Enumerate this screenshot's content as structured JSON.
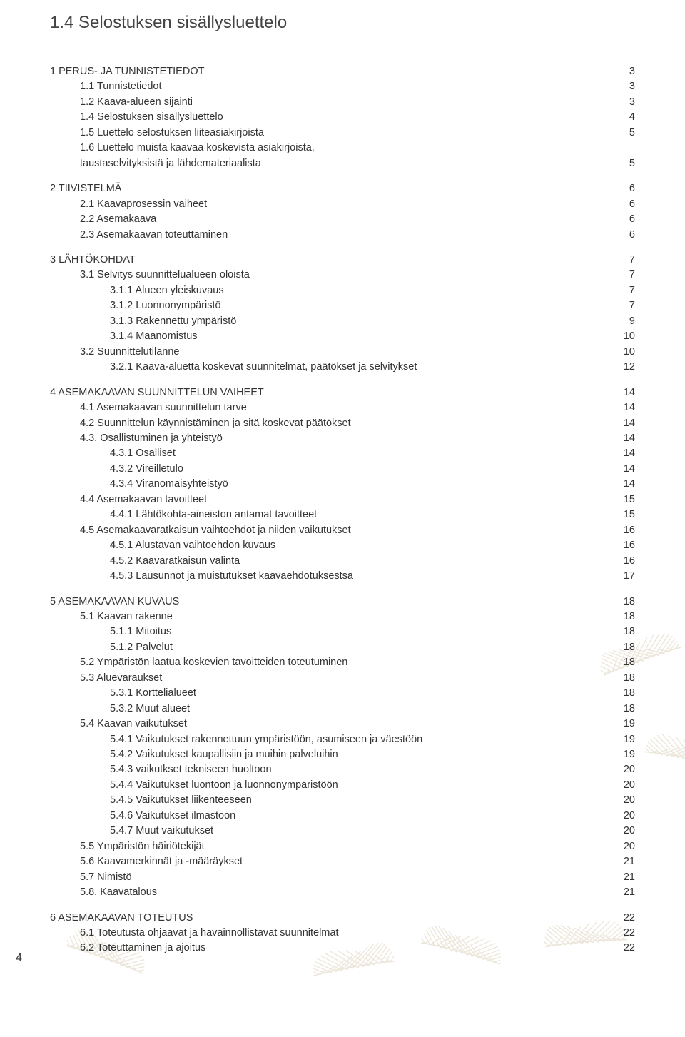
{
  "title": "1.4 Selostuksen sisällysluettelo",
  "page_number": "4",
  "leaf_stroke": "#c9b896",
  "toc": [
    {
      "gap": true
    },
    {
      "label": "1 PERUS- JA TUNNISTETIEDOT",
      "num": "3",
      "indent": 0
    },
    {
      "label": "1.1 Tunnistetiedot",
      "num": "3",
      "indent": 1
    },
    {
      "label": "1.2 Kaava-alueen sijainti",
      "num": "3",
      "indent": 1
    },
    {
      "label": "1.4 Selostuksen sisällysluettelo",
      "num": "4",
      "indent": 1
    },
    {
      "label": "1.5 Luettelo selostuksen liiteasiakirjoista",
      "num": "5",
      "indent": 1
    },
    {
      "label": "1.6 Luettelo muista kaavaa koskevista asiakirjoista,",
      "num": "",
      "indent": 1
    },
    {
      "label": "taustaselvityksistä ja lähdemateriaalista",
      "num": "5",
      "indent": 1
    },
    {
      "gap": true
    },
    {
      "label": "2 TIIVISTELMÄ",
      "num": "6",
      "indent": 0
    },
    {
      "label": "2.1 Kaavaprosessin vaiheet",
      "num": "6",
      "indent": 1
    },
    {
      "label": "2.2 Asemakaava",
      "num": "6",
      "indent": 1
    },
    {
      "label": "2.3 Asemakaavan toteuttaminen",
      "num": "6",
      "indent": 1
    },
    {
      "gap": true
    },
    {
      "label": "3 LÄHTÖKOHDAT",
      "num": "7",
      "indent": 0
    },
    {
      "label": "3.1 Selvitys suunnittelualueen oloista",
      "num": "7",
      "indent": 1
    },
    {
      "label": "3.1.1 Alueen yleiskuvaus",
      "num": "7",
      "indent": 2
    },
    {
      "label": "3.1.2 Luonnonympäristö",
      "num": "7",
      "indent": 2
    },
    {
      "label": "3.1.3 Rakennettu ympäristö",
      "num": "9",
      "indent": 2
    },
    {
      "label": "3.1.4 Maanomistus",
      "num": "10",
      "indent": 2
    },
    {
      "label": "3.2 Suunnittelutilanne",
      "num": "10",
      "indent": 1
    },
    {
      "label": "3.2.1 Kaava-aluetta koskevat suunnitelmat, päätökset ja selvitykset",
      "num": "12",
      "indent": 2
    },
    {
      "gap": true
    },
    {
      "label": "4 ASEMAKAAVAN SUUNNITTELUN VAIHEET",
      "num": "14",
      "indent": 0
    },
    {
      "label": "4.1 Asemakaavan suunnittelun tarve",
      "num": "14",
      "indent": 1
    },
    {
      "label": "4.2 Suunnittelun käynnistäminen ja sitä koskevat päätökset",
      "num": "14",
      "indent": 1
    },
    {
      "label": "4.3. Osallistuminen ja yhteistyö",
      "num": "14",
      "indent": 1
    },
    {
      "label": "4.3.1 Osalliset",
      "num": "14",
      "indent": 2
    },
    {
      "label": "4.3.2 Vireilletulo",
      "num": "14",
      "indent": 2
    },
    {
      "label": "4.3.4 Viranomaisyhteistyö",
      "num": "14",
      "indent": 2
    },
    {
      "label": "4.4 Asemakaavan tavoitteet",
      "num": "15",
      "indent": 1
    },
    {
      "label": "4.4.1 Lähtökohta-aineiston antamat tavoitteet",
      "num": "15",
      "indent": 2
    },
    {
      "label": "4.5 Asemakaavaratkaisun vaihtoehdot ja niiden vaikutukset",
      "num": "16",
      "indent": 1
    },
    {
      "label": "4.5.1 Alustavan vaihtoehdon kuvaus",
      "num": "16",
      "indent": 2
    },
    {
      "label": "4.5.2 Kaavaratkaisun valinta",
      "num": "16",
      "indent": 2
    },
    {
      "label": "4.5.3 Lausunnot ja muistutukset kaavaehdotuksestsa",
      "num": "17",
      "indent": 2
    },
    {
      "gap": true
    },
    {
      "label": "5 ASEMAKAAVAN KUVAUS",
      "num": "18",
      "indent": 0
    },
    {
      "label": "5.1 Kaavan rakenne",
      "num": "18",
      "indent": 1
    },
    {
      "label": "5.1.1 Mitoitus",
      "num": "18",
      "indent": 2
    },
    {
      "label": "5.1.2 Palvelut",
      "num": "18",
      "indent": 2
    },
    {
      "label": "5.2 Ympäristön laatua koskevien tavoitteiden toteutuminen",
      "num": "18",
      "indent": 1
    },
    {
      "label": "5.3 Aluevaraukset",
      "num": "18",
      "indent": 1
    },
    {
      "label": "5.3.1 Korttelialueet",
      "num": "18",
      "indent": 2
    },
    {
      "label": "5.3.2 Muut alueet",
      "num": "18",
      "indent": 2
    },
    {
      "label": "5.4 Kaavan vaikutukset",
      "num": "19",
      "indent": 1
    },
    {
      "label": "5.4.1 Vaikutukset rakennettuun ympäristöön, asumiseen ja väestöön",
      "num": "19",
      "indent": 2
    },
    {
      "label": "5.4.2 Vaikutukset kaupallisiin ja muihin palveluihin",
      "num": "19",
      "indent": 2
    },
    {
      "label": "5.4.3 vaikutkset tekniseen huoltoon",
      "num": "20",
      "indent": 2
    },
    {
      "label": "5.4.4 Vaikutukset luontoon ja luonnonympäristöön",
      "num": "20",
      "indent": 2
    },
    {
      "label": "5.4.5 Vaikutukset liikenteeseen",
      "num": "20",
      "indent": 2
    },
    {
      "label": "5.4.6 Vaikutukset ilmastoon",
      "num": "20",
      "indent": 2
    },
    {
      "label": "5.4.7 Muut vaikutukset",
      "num": "20",
      "indent": 2
    },
    {
      "label": "5.5 Ympäristön häiriötekijät",
      "num": "20",
      "indent": 1
    },
    {
      "label": "5.6 Kaavamerkinnät ja -määräykset",
      "num": "21",
      "indent": 1
    },
    {
      "label": "5.7 Nimistö",
      "num": "21",
      "indent": 1
    },
    {
      "label": "5.8. Kaavatalous",
      "num": "21",
      "indent": 1
    },
    {
      "gap": true
    },
    {
      "label": "6 ASEMAKAAVAN TOTEUTUS",
      "num": "22",
      "indent": 0
    },
    {
      "label": "6.1 Toteutusta ohjaavat ja havainnollistavat suunnitelmat",
      "num": "22",
      "indent": 1
    },
    {
      "label": "6.2 Toteuttaminen ja ajoitus",
      "num": "22",
      "indent": 1
    }
  ]
}
